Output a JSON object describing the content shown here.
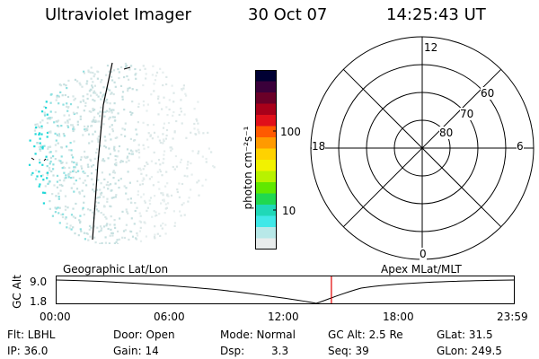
{
  "header": {
    "instrument": "Ultraviolet Imager",
    "date": "30 Oct 07",
    "time": "14:25:43 UT"
  },
  "colorbar": {
    "unit_label": "photon cm⁻²s⁻¹",
    "tick_100": "100",
    "tick_10": "10",
    "colors": [
      "#000033",
      "#3a003a",
      "#6a0028",
      "#a8001a",
      "#e0101a",
      "#ff5a00",
      "#ff9a00",
      "#ffd200",
      "#f2f200",
      "#b8f200",
      "#60e800",
      "#20d850",
      "#20d8b8",
      "#40e8e8",
      "#b8e8e8",
      "#e8ecec"
    ]
  },
  "polar": {
    "label_top": "12",
    "label_bottom": "0",
    "label_left": "18",
    "label_right": "6",
    "label_60": "60",
    "label_70": "70",
    "label_80": "80"
  },
  "altplot": {
    "y_axis_label": "GC Alt",
    "y_tick_high": "9.0",
    "y_tick_low": "1.8",
    "left_label": "Geographic Lat/Lon",
    "right_label": "Apex MLat/MLT",
    "x_ticks": [
      "00:00",
      "06:00",
      "12:00",
      "18:00",
      "23:59"
    ],
    "current_time_fraction": 0.601
  },
  "info": {
    "flt": "Flt: LBHL",
    "ip": "IP: 36.0",
    "door": "Door: Open",
    "gain": "Gain: 14",
    "mode": "Mode: Normal",
    "dsp_label": "Dsp:",
    "dsp_value": "3.3",
    "gc_alt": "GC Alt: 2.5 Re",
    "seq": "Seq: 39",
    "glat": "GLat:  31.5",
    "glon": "GLon: 249.5"
  }
}
